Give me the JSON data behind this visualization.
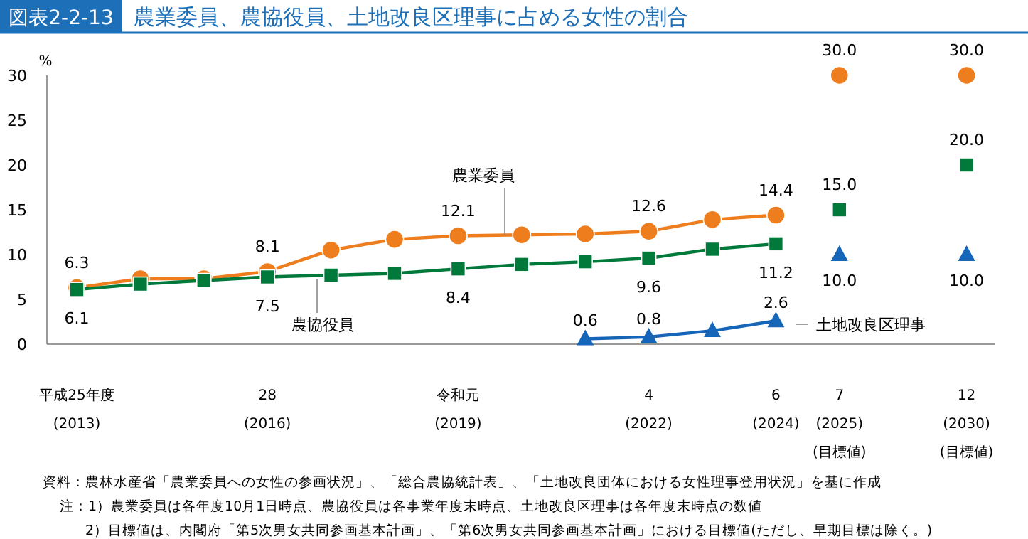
{
  "chart_data": {
    "type": "line",
    "title": "農業委員、農協役員、土地改良区理事に占める女性の割合",
    "ylabel": "%",
    "categories": [
      "平成25年度\n(2013)",
      null,
      null,
      "28\n(2016)",
      null,
      null,
      "令和元\n(2019)",
      null,
      null,
      "4\n(2022)",
      null,
      "6\n(2024)",
      "7\n(2025)\n(目標値)",
      null,
      "12\n(2030)\n(目標値)"
    ],
    "series": [
      {
        "name": "農業委員",
        "marker": "circle",
        "color": "#ee7d1e",
        "values": [
          6.3,
          7.3,
          7.3,
          8.1,
          10.5,
          11.7,
          12.1,
          12.2,
          12.3,
          12.6,
          13.9,
          14.4,
          null,
          null,
          null
        ],
        "value_labels": [
          "6.3",
          null,
          null,
          "8.1",
          null,
          null,
          "12.1",
          null,
          null,
          "12.6",
          null,
          "14.4",
          null,
          null,
          null
        ]
      },
      {
        "name": "農協役員",
        "marker": "square",
        "color": "#00793a",
        "values": [
          6.1,
          6.7,
          7.1,
          7.5,
          7.7,
          7.9,
          8.4,
          8.9,
          9.2,
          9.6,
          10.6,
          11.2,
          null,
          null,
          null
        ],
        "value_labels": [
          "6.1",
          null,
          null,
          "7.5",
          null,
          null,
          "8.4",
          null,
          null,
          "9.6",
          null,
          "11.2",
          null,
          null,
          null
        ]
      },
      {
        "name": "土地改良区理事",
        "marker": "triangle",
        "color": "#1565b8",
        "values": [
          null,
          null,
          null,
          null,
          null,
          null,
          null,
          null,
          0.6,
          0.8,
          1.5,
          2.6,
          null,
          null,
          null
        ],
        "value_labels": [
          null,
          null,
          null,
          null,
          null,
          null,
          null,
          null,
          "0.6",
          "0.8",
          null,
          "2.6",
          null,
          null,
          null
        ]
      },
      {
        "type": "scatter",
        "marker": "circle",
        "color": "#ee7d1e",
        "values": [
          null,
          null,
          null,
          null,
          null,
          null,
          null,
          null,
          null,
          null,
          null,
          null,
          30,
          null,
          30
        ],
        "value_labels": [
          null,
          null,
          null,
          null,
          null,
          null,
          null,
          null,
          null,
          null,
          null,
          null,
          "30.0",
          null,
          "30.0"
        ]
      },
      {
        "type": "scatter",
        "marker": "square",
        "color": "#00793a",
        "values": [
          null,
          null,
          null,
          null,
          null,
          null,
          null,
          null,
          null,
          null,
          null,
          null,
          15,
          null,
          20
        ],
        "value_labels": [
          null,
          null,
          null,
          null,
          null,
          null,
          null,
          null,
          null,
          null,
          null,
          null,
          "15.0",
          null,
          "20.0"
        ]
      },
      {
        "type": "scatter",
        "marker": "triangle",
        "color": "#1565b8",
        "values": [
          null,
          null,
          null,
          null,
          null,
          null,
          null,
          null,
          null,
          null,
          null,
          null,
          10,
          null,
          10
        ],
        "value_labels": [
          null,
          null,
          null,
          null,
          null,
          null,
          null,
          null,
          null,
          null,
          null,
          null,
          "10.0",
          null,
          "10.0"
        ]
      }
    ],
    "ylim": [
      0,
      30
    ],
    "yticks": [
      0,
      5,
      10,
      15,
      20,
      25,
      30
    ],
    "grid": false,
    "legend": false,
    "annotations": [
      "図表2-2-13",
      "資料：農林水産省「農業委員への女性の参画状況」、「総合農協統計表」、「土地改良団体における女性理事登用状況」を基に作成",
      "注：1）農業委員は各年度10月1日時点、農協役員は各事業年度末時点、土地改良区理事は各年度末時点の数値",
      "2）目標値は、内閣府「第5次男女共同参画基本計画」、「第6次男女共同参画基本計画」における目標値(ただし、早期目標は除く。)"
    ]
  }
}
